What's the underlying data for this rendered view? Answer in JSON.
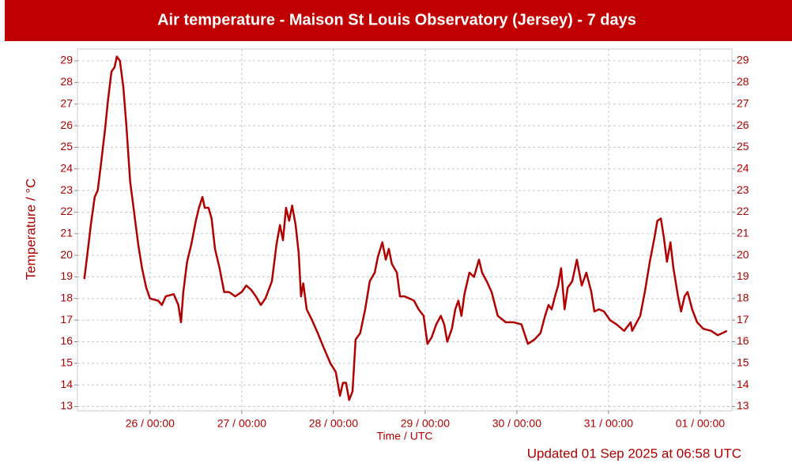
{
  "chart_data": {
    "type": "line",
    "title": "Air temperature - Maison St Louis Observatory (Jersey) - 7 days",
    "ylabel": "Temperature / °C",
    "xlabel": "Time / UTC",
    "footer": "Updated 01 Sep 2025 at 06:58 UTC",
    "color": "#b00000",
    "grid": true,
    "xlim": [
      5,
      176.3
    ],
    "xticks": [
      {
        "value": 24,
        "label": "26 / 00:00"
      },
      {
        "value": 48,
        "label": "27 / 00:00"
      },
      {
        "value": 72,
        "label": "28 / 00:00"
      },
      {
        "value": 96,
        "label": "29 / 00:00"
      },
      {
        "value": 120,
        "label": "30 / 00:00"
      },
      {
        "value": 144,
        "label": "31 / 00:00"
      },
      {
        "value": 168,
        "label": "01 / 00:00"
      }
    ],
    "ylim": [
      12.8,
      29.55
    ],
    "yticks": [
      13,
      14,
      15,
      16,
      17,
      18,
      19,
      20,
      21,
      22,
      23,
      24,
      25,
      26,
      27,
      28,
      29
    ],
    "x": [
      6.8,
      7.9,
      8.5,
      9.5,
      10.3,
      11.2,
      12.2,
      13.0,
      13.9,
      14.7,
      15.3,
      16.1,
      17.0,
      17.8,
      18.8,
      19.9,
      20.9,
      21.9,
      23.0,
      24,
      26.1,
      27.1,
      28.1,
      30.2,
      31.4,
      32.1,
      32.7,
      33.7,
      34.8,
      36.0,
      36.8,
      37.7,
      38.3,
      39.3,
      40.1,
      41.0,
      42.2,
      43.4,
      44.7,
      46.3,
      48,
      49.2,
      50.5,
      51.7,
      53.0,
      54.2,
      55.9,
      57.1,
      58.0,
      58.8,
      59.6,
      60.4,
      61.2,
      62.1,
      62.9,
      63.5,
      64.1,
      65.0,
      66.4,
      67.9,
      69.5,
      71.2,
      72.6,
      73.7,
      74.5,
      75.3,
      76.1,
      77.0,
      77.8,
      79.0,
      80.3,
      81.5,
      82.8,
      83.6,
      84.8,
      85.7,
      86.5,
      87.3,
      88.6,
      89.4,
      90.6,
      91.9,
      93.1,
      94.3,
      95.6,
      96.6,
      97.7,
      98.9,
      100.1,
      101.0,
      101.8,
      103.0,
      103.9,
      104.7,
      105.5,
      106.3,
      107.6,
      108.8,
      110.1,
      110.9,
      112.1,
      113.4,
      115.0,
      117.1,
      119.2,
      121.2,
      122.9,
      124.6,
      126.2,
      127.4,
      128.3,
      129.1,
      130.0,
      130.8,
      131.6,
      132.5,
      133.3,
      134.5,
      135.7,
      137.0,
      138.2,
      139.5,
      140.3,
      141.5,
      142.8,
      144.4,
      146.1,
      148.1,
      149.8,
      150.2,
      152.3,
      153.5,
      154.8,
      156.0,
      156.8,
      157.7,
      158.5,
      159.3,
      160.2,
      161.0,
      162.2,
      163.0,
      163.9,
      164.7,
      165.9,
      167.2,
      168.8,
      170.9,
      172.6,
      173.8,
      175.0
    ],
    "values": [
      18.9,
      20.5,
      21.4,
      22.7,
      23.0,
      24.3,
      25.8,
      27.2,
      28.5,
      28.7,
      29.2,
      29.0,
      27.8,
      26.0,
      23.4,
      21.9,
      20.5,
      19.4,
      18.5,
      18.0,
      17.9,
      17.7,
      18.1,
      18.2,
      17.7,
      16.9,
      18.3,
      19.7,
      20.5,
      21.6,
      22.2,
      22.7,
      22.2,
      22.2,
      21.7,
      20.3,
      19.4,
      18.3,
      18.3,
      18.1,
      18.3,
      18.6,
      18.4,
      18.1,
      17.7,
      18.0,
      18.8,
      20.5,
      21.4,
      20.7,
      22.2,
      21.6,
      22.3,
      21.4,
      20.1,
      18.1,
      18.7,
      17.5,
      17.0,
      16.4,
      15.7,
      15.0,
      14.6,
      13.5,
      14.1,
      14.1,
      13.3,
      13.7,
      16.1,
      16.4,
      17.5,
      18.8,
      19.2,
      19.9,
      20.6,
      19.8,
      20.3,
      19.6,
      19.2,
      18.1,
      18.1,
      18.0,
      17.9,
      17.5,
      17.2,
      15.9,
      16.2,
      16.8,
      17.2,
      16.8,
      16.0,
      16.6,
      17.5,
      17.9,
      17.2,
      18.2,
      19.2,
      19.0,
      19.8,
      19.2,
      18.8,
      18.3,
      17.2,
      16.9,
      16.9,
      16.8,
      15.9,
      16.1,
      16.4,
      17.2,
      17.7,
      17.5,
      18.1,
      18.6,
      19.4,
      17.5,
      18.5,
      18.8,
      19.8,
      18.6,
      19.2,
      18.3,
      17.4,
      17.5,
      17.4,
      17.0,
      16.8,
      16.5,
      16.9,
      16.5,
      17.2,
      18.3,
      19.7,
      20.8,
      21.6,
      21.7,
      20.8,
      19.7,
      20.6,
      19.4,
      18.1,
      17.4,
      18.1,
      18.3,
      17.5,
      16.9,
      16.6,
      16.5,
      16.3,
      16.4,
      16.5
    ]
  }
}
